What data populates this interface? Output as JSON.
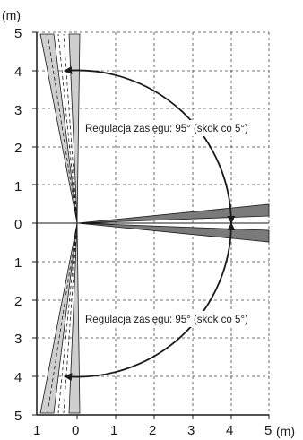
{
  "diagram": {
    "unit_top": "(m)",
    "unit_right": "(m)",
    "y_ticks": [
      "5",
      "4",
      "3",
      "2",
      "1",
      "0",
      "1",
      "2",
      "3",
      "4",
      "5"
    ],
    "x_ticks": [
      "1",
      "0",
      "1",
      "2",
      "3",
      "4",
      "5"
    ],
    "annotation_top": "Regulacja zasięgu: 95° (skok co 5°)",
    "annotation_bottom": "Regulacja zasięgu: 95° (skok co 5°)",
    "colors": {
      "line": "#1a1a1a",
      "beam_dark": "#7a7a7a",
      "beam_light": "#cfcfcf",
      "grid": "#444444"
    }
  }
}
